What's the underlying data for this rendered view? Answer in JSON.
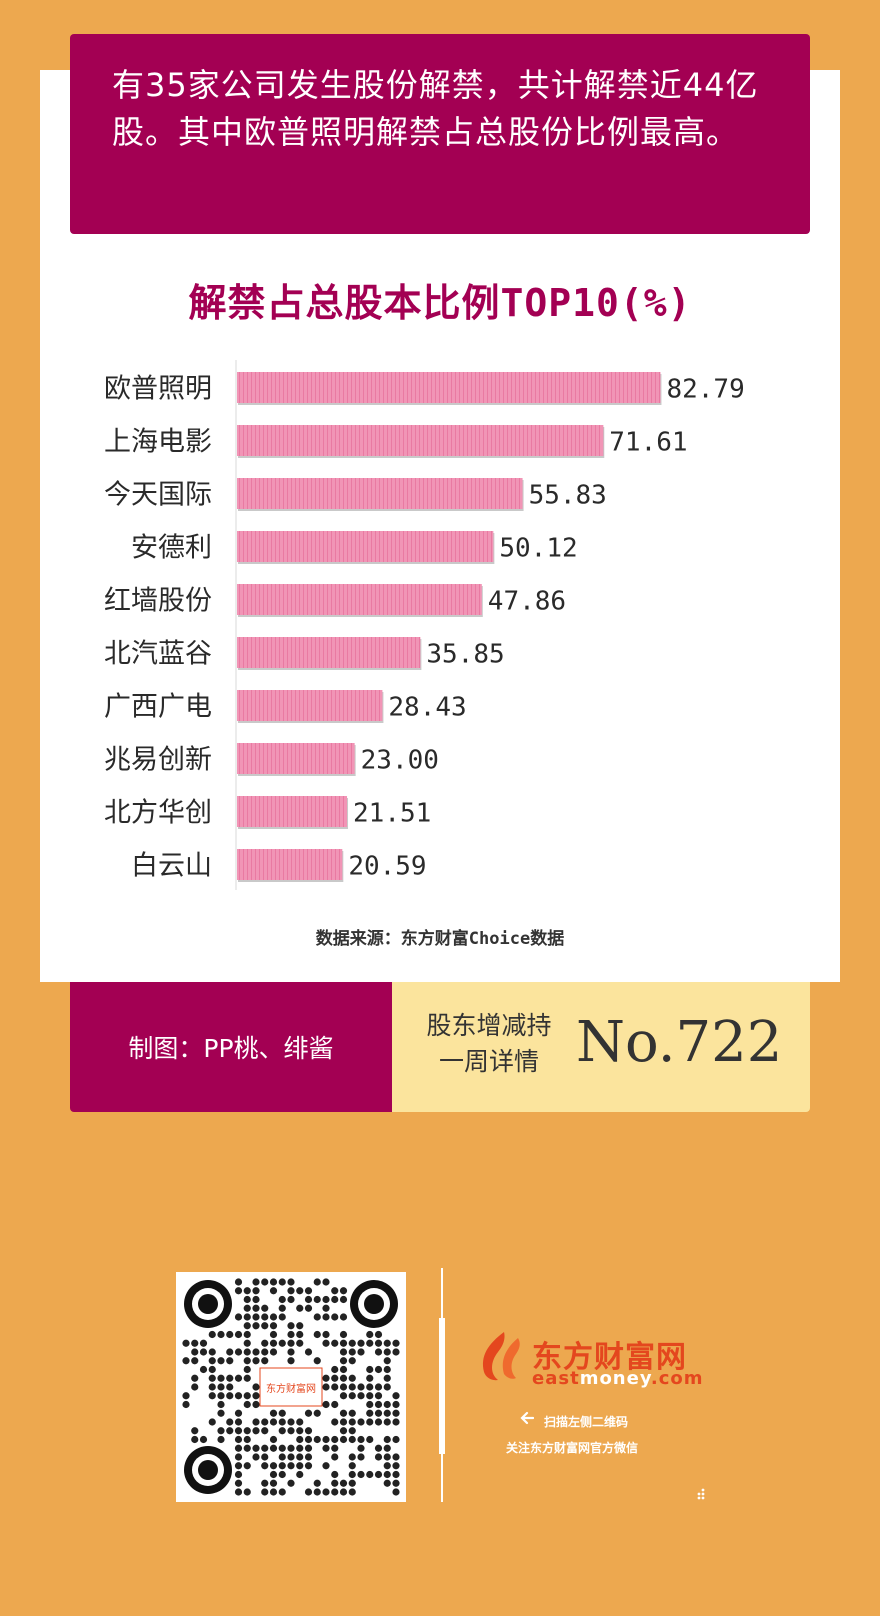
{
  "headline": "有35家公司发生股份解禁，共计解禁近44亿股。其中欧普照明解禁占总股份比例最高。",
  "chart_data": {
    "type": "bar",
    "orientation": "horizontal",
    "title": "解禁占总股本比例TOP10(%)",
    "categories": [
      "欧普照明",
      "上海电影",
      "今天国际",
      "安德利",
      "红墙股份",
      "北汽蓝谷",
      "广西广电",
      "兆易创新",
      "北方华创",
      "白云山"
    ],
    "values": [
      82.79,
      71.61,
      55.83,
      50.12,
      47.86,
      35.85,
      28.43,
      23.0,
      21.51,
      20.59
    ],
    "value_labels": [
      "82.79",
      "71.61",
      "55.83",
      "50.12",
      "47.86",
      "35.85",
      "28.43",
      "23.00",
      "21.51",
      "20.59"
    ],
    "xlim": [
      0,
      100
    ],
    "grid": false,
    "legend": "none"
  },
  "source": "数据来源：东方财富Choice数据",
  "footer": {
    "credit": "制图：PP桃、绯酱",
    "column_line1": "股东增减持",
    "column_line2": "一周详情",
    "issue": "No.722"
  },
  "brand": {
    "name_cn": "东方财富网",
    "name_en_east": "east",
    "name_en_money": "money",
    "name_en_dotcom": ".com",
    "scan_hint": "扫描左侧二维码",
    "follow_text": "关注东方财富网官方微信",
    "qr_center_text": "东方财富网"
  },
  "colors": {
    "background": "#eda84f",
    "accent": "#a30053",
    "bar": "#f195b6",
    "footer_highlight": "#fbe49d",
    "brand": "#e4471e"
  },
  "icons": {
    "flame": "flame-logo-icon",
    "arrow": "arrow-left-icon",
    "qr": "qr-code-icon",
    "dots": "dots-icon"
  }
}
